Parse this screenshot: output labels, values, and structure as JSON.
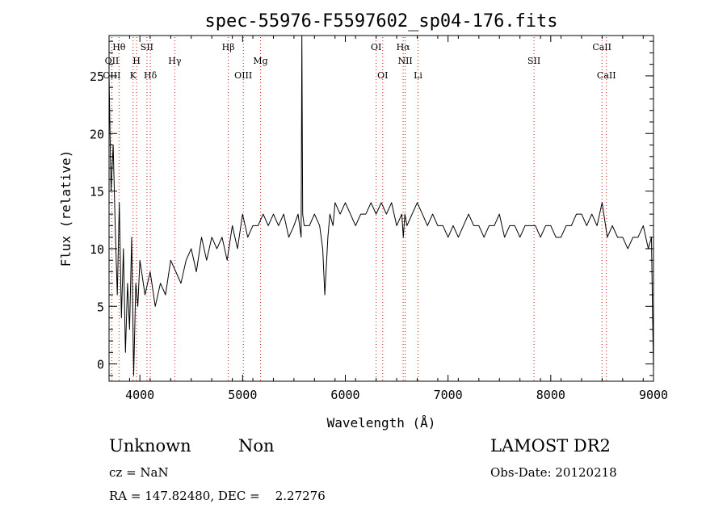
{
  "chart_data": {
    "type": "line",
    "title": "spec-55976-F5597602_sp04-176.fits",
    "xlabel": "Wavelength (Å)",
    "ylabel": "Flux (relative)",
    "xlim": [
      3700,
      9000
    ],
    "ylim": [
      -1.5,
      28.5
    ],
    "xticks": [
      4000,
      5000,
      6000,
      7000,
      8000,
      9000
    ],
    "yticks": [
      0,
      5,
      10,
      15,
      20,
      25
    ],
    "grid": false,
    "series": [
      {
        "color": "#000000",
        "x": [
          3700,
          3720,
          3740,
          3760,
          3780,
          3800,
          3820,
          3840,
          3860,
          3880,
          3900,
          3920,
          3940,
          3960,
          3980,
          4000,
          4050,
          4100,
          4150,
          4200,
          4250,
          4300,
          4350,
          4400,
          4450,
          4500,
          4550,
          4600,
          4650,
          4700,
          4750,
          4800,
          4850,
          4900,
          4950,
          5000,
          5050,
          5100,
          5150,
          5200,
          5250,
          5300,
          5350,
          5400,
          5450,
          5500,
          5540,
          5570,
          5577,
          5585,
          5600,
          5650,
          5700,
          5750,
          5780,
          5800,
          5830,
          5850,
          5880,
          5900,
          5950,
          6000,
          6050,
          6100,
          6150,
          6200,
          6250,
          6300,
          6350,
          6400,
          6450,
          6500,
          6550,
          6565,
          6580,
          6600,
          6650,
          6700,
          6750,
          6800,
          6850,
          6900,
          6950,
          7000,
          7050,
          7100,
          7150,
          7200,
          7250,
          7300,
          7350,
          7400,
          7450,
          7500,
          7550,
          7600,
          7650,
          7700,
          7750,
          7800,
          7850,
          7900,
          7950,
          8000,
          8050,
          8100,
          8150,
          8200,
          8250,
          8300,
          8350,
          8400,
          8450,
          8500,
          8550,
          8600,
          8650,
          8700,
          8750,
          8800,
          8850,
          8900,
          8950,
          8980,
          8990,
          9000
        ],
        "y": [
          25,
          15,
          19,
          12,
          6,
          14,
          4,
          10,
          1,
          7,
          3,
          11,
          -1,
          7,
          5,
          9,
          6,
          8,
          5,
          7,
          6,
          9,
          8,
          7,
          9,
          10,
          8,
          11,
          9,
          11,
          10,
          11,
          9,
          12,
          10,
          13,
          11,
          12,
          12,
          13,
          12,
          13,
          12,
          13,
          11,
          12,
          13,
          11,
          28.5,
          13,
          12,
          12,
          13,
          12,
          10,
          6,
          11,
          13,
          12,
          14,
          13,
          14,
          13,
          12,
          13,
          13,
          14,
          13,
          14,
          13,
          14,
          12,
          13,
          11,
          13,
          12,
          13,
          14,
          13,
          12,
          13,
          12,
          12,
          11,
          12,
          11,
          12,
          13,
          12,
          12,
          11,
          12,
          12,
          13,
          11,
          12,
          12,
          11,
          12,
          12,
          12,
          11,
          12,
          12,
          11,
          11,
          12,
          12,
          13,
          13,
          12,
          13,
          12,
          14,
          11,
          12,
          11,
          11,
          10,
          11,
          11,
          12,
          10,
          11,
          5,
          -0.5
        ]
      }
    ],
    "line_markers": {
      "row1": [
        {
          "label": "Hθ",
          "x": 3797
        },
        {
          "label": "SII",
          "x": 4069
        },
        {
          "label": "Hβ",
          "x": 4861
        },
        {
          "label": "OI",
          "x": 6300
        },
        {
          "label": "Hα",
          "x": 6563
        },
        {
          "label": "CaII",
          "x": 8498
        }
      ],
      "row2": [
        {
          "label": "OII",
          "x": 3727
        },
        {
          "label": "H",
          "x": 3968
        },
        {
          "label": "Hγ",
          "x": 4340
        },
        {
          "label": "Mg",
          "x": 5175
        },
        {
          "label": "NII",
          "x": 6583
        },
        {
          "label": "SII",
          "x": 7837
        }
      ],
      "row3": [
        {
          "label": "OIII",
          "x": 3727
        },
        {
          "label": "K",
          "x": 3934
        },
        {
          "label": "Hδ",
          "x": 4102
        },
        {
          "label": "OIII",
          "x": 5007
        },
        {
          "label": "OI",
          "x": 6364
        },
        {
          "label": "Li",
          "x": 6708
        },
        {
          "label": "CaII",
          "x": 8542
        }
      ]
    }
  },
  "info": {
    "class": "Unknown",
    "subclass": "Non",
    "survey": "LAMOST DR2",
    "cz": "cz = NaN",
    "obs_date": "Obs-Date: 20120218",
    "coords": "RA = 147.82480, DEC =    2.27276"
  }
}
